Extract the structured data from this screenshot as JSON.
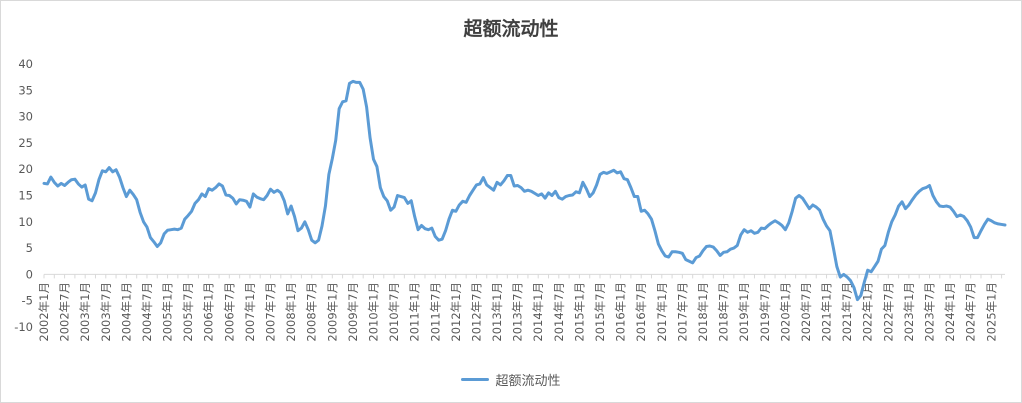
{
  "chart_data": {
    "type": "line",
    "title": "超额流动性",
    "xlabel": "",
    "ylabel": "",
    "ylim": [
      -10,
      40
    ],
    "y_ticks": [
      40,
      35,
      30,
      25,
      20,
      15,
      10,
      5,
      0,
      -5,
      -10
    ],
    "grid": false,
    "legend_position": "bottom",
    "line_color": "#5b9bd5",
    "x_tick_labels": [
      "2002年1月",
      "2002年7月",
      "2003年1月",
      "2003年7月",
      "2004年1月",
      "2004年7月",
      "2005年1月",
      "2005年7月",
      "2006年1月",
      "2006年7月",
      "2007年1月",
      "2007年7月",
      "2008年1月",
      "2008年7月",
      "2009年1月",
      "2009年7月",
      "2010年1月",
      "2010年7月",
      "2011年1月",
      "2011年7月",
      "2012年1月",
      "2012年7月",
      "2013年1月",
      "2013年7月",
      "2014年1月",
      "2014年7月",
      "2015年1月",
      "2015年7月",
      "2016年1月",
      "2016年7月",
      "2017年1月",
      "2017年7月",
      "2018年1月",
      "2018年7月",
      "2019年1月",
      "2019年7月",
      "2020年1月",
      "2020年7月",
      "2021年1月",
      "2021年7月",
      "2022年1月",
      "2022年7月",
      "2023年1月",
      "2023年7月",
      "2024年1月",
      "2024年7月",
      "2025年1月"
    ],
    "series": [
      {
        "name": "超额流动性",
        "values": [
          17.3,
          17.2,
          18.5,
          17.5,
          16.8,
          17.3,
          16.9,
          17.5,
          18.0,
          18.1,
          17.2,
          16.6,
          17.0,
          14.3,
          14.0,
          15.5,
          18.0,
          19.7,
          19.5,
          20.3,
          19.5,
          19.9,
          18.5,
          16.5,
          14.8,
          16.0,
          15.2,
          14.2,
          11.8,
          10.0,
          9.0,
          7.0,
          6.2,
          5.3,
          6.0,
          7.7,
          8.4,
          8.5,
          8.6,
          8.5,
          8.8,
          10.5,
          11.2,
          12.0,
          13.5,
          14.2,
          15.3,
          14.8,
          16.3,
          16.0,
          16.5,
          17.2,
          16.8,
          15.1,
          15.0,
          14.5,
          13.4,
          14.2,
          14.1,
          13.9,
          12.8,
          15.3,
          14.7,
          14.4,
          14.2,
          15.0,
          16.2,
          15.6,
          16.0,
          15.5,
          14.0,
          11.5,
          13.0,
          11.0,
          8.3,
          8.8,
          10.0,
          8.5,
          6.5,
          6.0,
          6.5,
          9.2,
          13.0,
          19.0,
          22.0,
          25.5,
          31.5,
          32.8,
          33.0,
          36.3,
          36.7,
          36.5,
          36.5,
          35.2,
          31.8,
          26.0,
          21.9,
          20.5,
          16.5,
          14.8,
          14.0,
          12.2,
          12.8,
          15.0,
          14.8,
          14.6,
          13.5,
          14.0,
          11.0,
          8.5,
          9.3,
          8.7,
          8.5,
          8.8,
          7.2,
          6.5,
          6.7,
          8.3,
          10.5,
          12.2,
          12.0,
          13.2,
          13.9,
          13.7,
          15.0,
          16.0,
          17.0,
          17.2,
          18.4,
          17.0,
          16.5,
          16.0,
          17.5,
          17.0,
          17.8,
          18.8,
          18.8,
          16.8,
          16.9,
          16.5,
          15.8,
          16.0,
          15.8,
          15.4,
          15.0,
          15.3,
          14.5,
          15.5,
          15.0,
          15.8,
          14.6,
          14.3,
          14.8,
          15.0,
          15.1,
          15.7,
          15.5,
          17.5,
          16.3,
          14.8,
          15.5,
          17.0,
          19.0,
          19.4,
          19.2,
          19.5,
          19.8,
          19.3,
          19.5,
          18.2,
          18.0,
          16.5,
          14.8,
          14.8,
          12.0,
          12.2,
          11.5,
          10.5,
          8.3,
          5.8,
          4.5,
          3.5,
          3.3,
          4.3,
          4.3,
          4.2,
          4.0,
          2.8,
          2.5,
          2.2,
          3.2,
          3.5,
          4.5,
          5.3,
          5.4,
          5.2,
          4.5,
          3.6,
          4.2,
          4.3,
          4.8,
          5.0,
          5.5,
          7.5,
          8.5,
          8.0,
          8.3,
          7.8,
          8.0,
          8.8,
          8.7,
          9.3,
          9.8,
          10.2,
          9.8,
          9.3,
          8.5,
          9.8,
          12.0,
          14.5,
          15.0,
          14.5,
          13.5,
          12.5,
          13.2,
          12.8,
          12.2,
          10.5,
          9.2,
          8.3,
          5.0,
          1.5,
          -0.5,
          0.0,
          -0.5,
          -1.2,
          -2.5,
          -4.8,
          -4.0,
          -1.5,
          0.8,
          0.5,
          1.5,
          2.5,
          4.8,
          5.5,
          8.0,
          10.0,
          11.3,
          13.0,
          13.8,
          12.5,
          13.2,
          14.2,
          15.1,
          15.8,
          16.3,
          16.5,
          16.9,
          15.0,
          13.8,
          13.0,
          12.9,
          13.0,
          12.8,
          12.0,
          11.0,
          11.3,
          11.0,
          10.2,
          9.0,
          7.0,
          7.0,
          8.3,
          9.5,
          10.5,
          10.2,
          9.8,
          9.6,
          9.5,
          9.4
        ]
      }
    ]
  }
}
